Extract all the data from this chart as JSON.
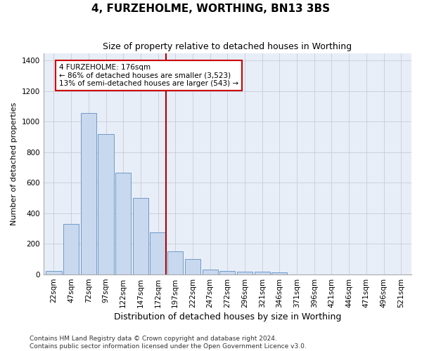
{
  "title": "4, FURZEHOLME, WORTHING, BN13 3BS",
  "subtitle": "Size of property relative to detached houses in Worthing",
  "xlabel": "Distribution of detached houses by size in Worthing",
  "ylabel": "Number of detached properties",
  "categories": [
    "22sqm",
    "47sqm",
    "72sqm",
    "97sqm",
    "122sqm",
    "147sqm",
    "172sqm",
    "197sqm",
    "222sqm",
    "247sqm",
    "272sqm",
    "296sqm",
    "321sqm",
    "346sqm",
    "371sqm",
    "396sqm",
    "421sqm",
    "446sqm",
    "471sqm",
    "496sqm",
    "521sqm"
  ],
  "values": [
    20,
    330,
    1055,
    920,
    665,
    500,
    275,
    150,
    100,
    30,
    20,
    15,
    15,
    10,
    0,
    0,
    0,
    0,
    0,
    0,
    0
  ],
  "bar_color": "#c8d8ee",
  "bar_edge_color": "#6090c0",
  "vline_color": "#aa0000",
  "annotation_text": "4 FURZEHOLME: 176sqm\n← 86% of detached houses are smaller (3,523)\n13% of semi-detached houses are larger (543) →",
  "annotation_box_color": "#ffffff",
  "annotation_box_edge": "#cc0000",
  "ylim": [
    0,
    1450
  ],
  "yticks": [
    0,
    200,
    400,
    600,
    800,
    1000,
    1200,
    1400
  ],
  "plot_bg_color": "#e8eef8",
  "footer_line1": "Contains HM Land Registry data © Crown copyright and database right 2024.",
  "footer_line2": "Contains public sector information licensed under the Open Government Licence v3.0.",
  "title_fontsize": 11,
  "subtitle_fontsize": 9,
  "xlabel_fontsize": 9,
  "ylabel_fontsize": 8,
  "tick_fontsize": 7.5,
  "footer_fontsize": 6.5,
  "annotation_fontsize": 7.5
}
